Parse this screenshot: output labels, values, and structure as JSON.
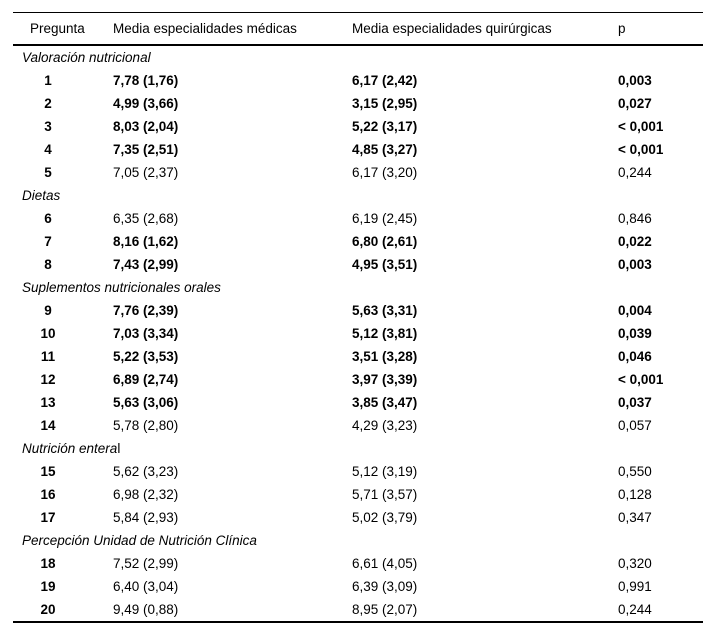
{
  "table": {
    "headers": {
      "question": "Pregunta",
      "medical": "Media especialidades médicas",
      "surgical": "Media especialidades quirúrgicas",
      "p": "p"
    },
    "sections": [
      {
        "label": "Valoración nutricional",
        "rows": [
          {
            "q": "1",
            "medical": "7,78 (1,76)",
            "surgical": "6,17 (2,42)",
            "p": "0,003",
            "bold": true
          },
          {
            "q": "2",
            "medical": "4,99 (3,66)",
            "surgical": "3,15 (2,95)",
            "p": "0,027",
            "bold": true
          },
          {
            "q": "3",
            "medical": "8,03 (2,04)",
            "surgical": "5,22 (3,17)",
            "p": "< 0,001",
            "bold": true
          },
          {
            "q": "4",
            "medical": "7,35 (2,51)",
            "surgical": "4,85 (3,27)",
            "p": "< 0,001",
            "bold": true
          },
          {
            "q": "5",
            "medical": "7,05 (2,37)",
            "surgical": "6,17 (3,20)",
            "p": "0,244",
            "bold": false
          }
        ]
      },
      {
        "label": "Dietas",
        "rows": [
          {
            "q": "6",
            "medical": "6,35 (2,68)",
            "surgical": "6,19 (2,45)",
            "p": "0,846",
            "bold": false
          },
          {
            "q": "7",
            "medical": "8,16 (1,62)",
            "surgical": "6,80 (2,61)",
            "p": "0,022",
            "bold": true
          },
          {
            "q": "8",
            "medical": "7,43 (2,99)",
            "surgical": "4,95 (3,51)",
            "p": "0,003",
            "bold": true
          }
        ]
      },
      {
        "label": "Suplementos nutricionales orales",
        "rows": [
          {
            "q": "9",
            "medical": "7,76 (2,39)",
            "surgical": "5,63 (3,31)",
            "p": "0,004",
            "bold": true
          },
          {
            "q": "10",
            "medical": "7,03 (3,34)",
            "surgical": "5,12 (3,81)",
            "p": "0,039",
            "bold": true
          },
          {
            "q": "11",
            "medical": "5,22 (3,53)",
            "surgical": "3,51 (3,28)",
            "p": "0,046",
            "bold": true
          },
          {
            "q": "12",
            "medical": "6,89 (2,74)",
            "surgical": "3,97 (3,39)",
            "p": "< 0,001",
            "bold": true
          },
          {
            "q": "13",
            "medical": "5,63 (3,06)",
            "surgical": "3,85 (3,47)",
            "p": "0,037",
            "bold": true
          },
          {
            "q": "14",
            "medical": "5,78 (2,80)",
            "surgical": "4,29 (3,23)",
            "p": "0,057",
            "bold": false
          }
        ]
      },
      {
        "label": "Nutrición entera",
        "label_suffix": "l",
        "rows": [
          {
            "q": "15",
            "medical": "5,62 (3,23)",
            "surgical": "5,12 (3,19)",
            "p": "0,550",
            "bold": false
          },
          {
            "q": "16",
            "medical": "6,98 (2,32)",
            "surgical": "5,71 (3,57)",
            "p": "0,128",
            "bold": false
          },
          {
            "q": "17",
            "medical": "5,84 (2,93)",
            "surgical": "5,02 (3,79)",
            "p": "0,347",
            "bold": false
          }
        ]
      },
      {
        "label": "Percepción Unidad de Nutrición Clínica",
        "rows": [
          {
            "q": "18",
            "medical": "7,52 (2,99)",
            "surgical": "6,61 (4,05)",
            "p": "0,320",
            "bold": false
          },
          {
            "q": "19",
            "medical": "6,40 (3,04)",
            "surgical": "6,39 (3,09)",
            "p": "0,991",
            "bold": false
          },
          {
            "q": "20",
            "medical": "9,49 (0,88)",
            "surgical": "8,95 (2,07)",
            "p": "0,244",
            "bold": false
          }
        ]
      }
    ]
  }
}
